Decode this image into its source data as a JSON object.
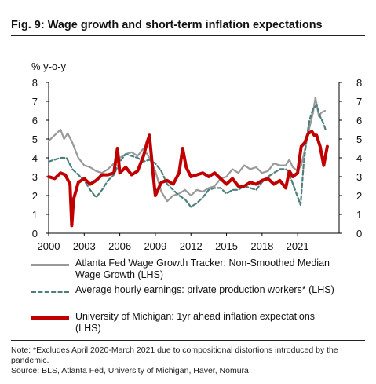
{
  "figure": {
    "title": "Fig. 9: Wage growth and short-term inflation expectations",
    "unit_label": "% y-o-y",
    "note": "Note: *Excludes April 2020-March 2021 due to compositional distortions introduced by the pandemic.",
    "source": "Source: BLS, Atlanta Fed, University of Michigan, Haver, Nomura"
  },
  "chart_data": {
    "type": "line",
    "title": "Fig. 9: Wage growth and short-term inflation expectations",
    "ylabel": "% y-o-y",
    "xlim": [
      2000,
      2024.5
    ],
    "ylim": [
      0,
      8
    ],
    "x_ticks": [
      "2000",
      "2003",
      "2006",
      "2009",
      "2012",
      "2015",
      "2018",
      "2021"
    ],
    "x_tick_values": [
      2000,
      2003,
      2006,
      2009,
      2012,
      2015,
      2018,
      2021
    ],
    "y_ticks": [
      "0",
      "1",
      "2",
      "3",
      "4",
      "5",
      "6",
      "7",
      "8"
    ],
    "y_tick_values": [
      0,
      1,
      2,
      3,
      4,
      5,
      6,
      7,
      8
    ],
    "grid": false,
    "legend_position": "bottom",
    "series": [
      {
        "name": "Atlanta Fed Wage Growth Tracker: Non-Smoothed Median Wage Growth (LHS)",
        "color": "#999999",
        "style": "solid",
        "x": [
          2000.0,
          2000.5,
          2001.0,
          2001.3,
          2001.6,
          2002.0,
          2002.5,
          2003.0,
          2003.5,
          2004.0,
          2004.5,
          2005.0,
          2005.5,
          2006.0,
          2006.5,
          2007.0,
          2007.5,
          2008.0,
          2008.5,
          2009.0,
          2009.5,
          2010.0,
          2010.5,
          2011.0,
          2011.5,
          2012.0,
          2012.5,
          2013.0,
          2013.5,
          2014.0,
          2014.5,
          2015.0,
          2015.5,
          2016.0,
          2016.5,
          2017.0,
          2017.5,
          2018.0,
          2018.5,
          2019.0,
          2019.5,
          2020.0,
          2020.3,
          2020.6,
          2021.0,
          2021.3,
          2021.6,
          2022.0,
          2022.3,
          2022.5,
          2022.8,
          2023.0,
          2023.3
        ],
        "values": [
          4.9,
          5.2,
          5.5,
          5.0,
          5.3,
          4.8,
          4.0,
          3.6,
          3.5,
          3.3,
          3.2,
          3.4,
          3.7,
          4.0,
          4.2,
          4.3,
          4.1,
          4.5,
          4.0,
          3.3,
          2.2,
          1.7,
          2.0,
          2.1,
          2.3,
          2.0,
          2.3,
          2.2,
          2.4,
          2.5,
          2.9,
          3.0,
          3.4,
          3.2,
          3.6,
          3.4,
          3.5,
          3.2,
          3.3,
          3.7,
          3.6,
          3.6,
          3.9,
          3.5,
          3.3,
          3.6,
          4.4,
          5.6,
          6.4,
          7.2,
          6.2,
          6.4,
          6.5
        ]
      },
      {
        "name": "Average hourly earnings: private production workers* (LHS)",
        "color": "#4d7f7f",
        "style": "dashed",
        "x": [
          2000.0,
          2000.5,
          2001.0,
          2001.5,
          2002.0,
          2002.5,
          2003.0,
          2003.5,
          2004.0,
          2004.5,
          2005.0,
          2005.5,
          2006.0,
          2006.5,
          2007.0,
          2007.5,
          2008.0,
          2008.5,
          2009.0,
          2009.5,
          2010.0,
          2010.5,
          2011.0,
          2011.5,
          2012.0,
          2012.5,
          2013.0,
          2013.5,
          2014.0,
          2014.5,
          2015.0,
          2015.5,
          2016.0,
          2016.5,
          2017.0,
          2017.5,
          2018.0,
          2018.5,
          2019.0,
          2019.5,
          2020.0,
          2020.2,
          2021.25,
          2021.5,
          2021.8,
          2022.0,
          2022.3,
          2022.6,
          2022.9,
          2023.2,
          2023.4
        ],
        "values": [
          3.8,
          3.9,
          4.0,
          4.0,
          3.4,
          3.1,
          2.8,
          2.3,
          1.9,
          2.3,
          2.8,
          3.1,
          3.8,
          4.2,
          4.1,
          4.0,
          3.8,
          3.9,
          3.7,
          3.3,
          2.6,
          2.3,
          2.0,
          1.8,
          1.4,
          1.6,
          1.9,
          2.3,
          2.4,
          2.4,
          2.1,
          2.3,
          2.3,
          2.5,
          2.4,
          2.3,
          2.7,
          3.0,
          3.2,
          3.4,
          3.4,
          3.3,
          1.5,
          3.6,
          5.2,
          6.0,
          6.6,
          6.8,
          6.2,
          5.8,
          5.4
        ]
      },
      {
        "name": "University of Michigan: 1yr ahead inflation expectations (LHS)",
        "color": "#c00000",
        "style": "solid",
        "x": [
          2000.0,
          2000.5,
          2001.0,
          2001.4,
          2001.8,
          2001.95,
          2002.1,
          2002.5,
          2003.0,
          2003.5,
          2004.0,
          2004.5,
          2005.0,
          2005.5,
          2005.8,
          2006.0,
          2006.5,
          2007.0,
          2007.5,
          2008.0,
          2008.3,
          2008.5,
          2008.8,
          2009.0,
          2009.5,
          2010.0,
          2010.5,
          2011.0,
          2011.3,
          2011.6,
          2012.0,
          2012.5,
          2013.0,
          2013.5,
          2014.0,
          2014.5,
          2015.0,
          2015.5,
          2016.0,
          2016.5,
          2017.0,
          2017.5,
          2018.0,
          2018.5,
          2019.0,
          2019.5,
          2020.0,
          2020.3,
          2020.6,
          2021.0,
          2021.3,
          2021.6,
          2021.9,
          2022.2,
          2022.4,
          2022.6,
          2022.9,
          2023.2,
          2023.35,
          2023.5
        ],
        "values": [
          3.0,
          2.9,
          3.2,
          3.1,
          2.6,
          0.4,
          1.8,
          2.7,
          2.9,
          2.6,
          2.8,
          3.1,
          3.1,
          3.2,
          4.5,
          3.2,
          3.5,
          3.1,
          3.3,
          4.1,
          4.8,
          5.2,
          3.2,
          2.0,
          2.7,
          2.8,
          2.6,
          3.2,
          4.5,
          3.5,
          3.0,
          3.1,
          3.2,
          3.0,
          3.2,
          2.9,
          2.6,
          2.9,
          2.5,
          2.5,
          2.7,
          2.6,
          2.8,
          2.9,
          2.6,
          2.8,
          2.4,
          3.3,
          3.0,
          3.2,
          4.6,
          4.8,
          5.3,
          5.4,
          5.2,
          5.2,
          4.6,
          3.6,
          4.1,
          4.6
        ]
      }
    ]
  },
  "legend": [
    {
      "text": "Atlanta Fed Wage Growth Tracker: Non-Smoothed Median",
      "text2": "Wage Growth (LHS)"
    },
    {
      "text": "Average hourly earnings: private production workers* (LHS)"
    },
    {
      "text": "University of Michigan: 1yr ahead inflation expectations",
      "text2": "(LHS)"
    }
  ]
}
